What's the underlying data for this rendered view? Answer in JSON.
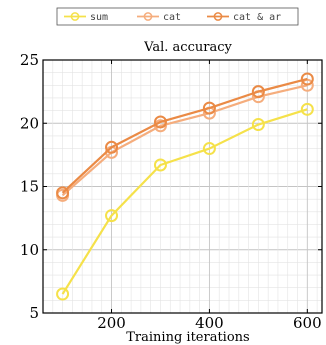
{
  "chart_data": {
    "type": "line",
    "title": "Val. accuracy",
    "xlabel": "Training iterations",
    "ylabel": "",
    "x": [
      100,
      200,
      300,
      400,
      500,
      600
    ],
    "xlim": [
      60,
      630
    ],
    "ylim": [
      5,
      25
    ],
    "xticks": [
      200,
      400,
      600
    ],
    "yticks": [
      5,
      10,
      15,
      20,
      25
    ],
    "grid": true,
    "legend_position": "top-center",
    "series": [
      {
        "name": "sum",
        "color": "#f5e14a",
        "values": [
          6.5,
          12.7,
          16.7,
          18.0,
          19.9,
          21.1
        ]
      },
      {
        "name": "cat",
        "color": "#f5ad7d",
        "values": [
          14.3,
          17.7,
          19.8,
          20.8,
          22.1,
          23.0
        ]
      },
      {
        "name": "cat & ar",
        "color": "#ea8a45",
        "values": [
          14.5,
          18.1,
          20.1,
          21.2,
          22.5,
          23.5
        ]
      }
    ]
  }
}
